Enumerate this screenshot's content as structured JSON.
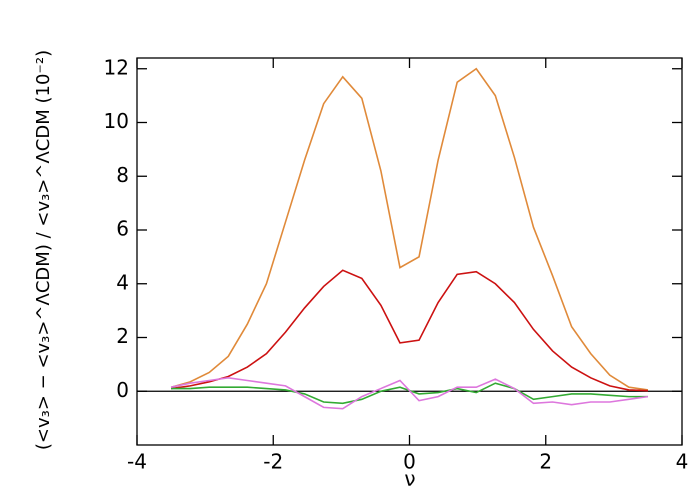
{
  "chart_data": {
    "type": "line",
    "x_label": "ν",
    "y_label": "(<v₃> − <v₃>^ΛCDM) / <v₃>^ΛCDM (10⁻²)",
    "x": [
      -3.5,
      -3.22,
      -2.94,
      -2.66,
      -2.38,
      -2.1,
      -1.82,
      -1.54,
      -1.26,
      -0.98,
      -0.7,
      -0.42,
      -0.14,
      0.14,
      0.42,
      0.7,
      0.98,
      1.26,
      1.54,
      1.82,
      2.1,
      2.38,
      2.66,
      2.94,
      3.22,
      3.5
    ],
    "series": [
      {
        "color": "#e08a3a",
        "values": [
          0.15,
          0.35,
          0.7,
          1.3,
          2.5,
          4.0,
          6.3,
          8.6,
          10.7,
          11.7,
          10.9,
          8.2,
          4.6,
          5.0,
          8.6,
          11.5,
          12.0,
          11.0,
          8.7,
          6.1,
          4.3,
          2.4,
          1.4,
          0.6,
          0.15,
          0.05
        ]
      },
      {
        "color": "#cc1111",
        "values": [
          0.1,
          0.2,
          0.35,
          0.55,
          0.9,
          1.4,
          2.2,
          3.1,
          3.9,
          4.5,
          4.2,
          3.2,
          1.8,
          1.9,
          3.3,
          4.35,
          4.45,
          4.0,
          3.3,
          2.3,
          1.5,
          0.9,
          0.5,
          0.2,
          0.05,
          0.02
        ]
      },
      {
        "color": "#33aa33",
        "values": [
          0.1,
          0.1,
          0.15,
          0.15,
          0.15,
          0.1,
          0.05,
          -0.1,
          -0.4,
          -0.45,
          -0.3,
          0.0,
          0.15,
          -0.1,
          -0.05,
          0.1,
          -0.05,
          0.3,
          0.1,
          -0.3,
          -0.2,
          -0.1,
          -0.1,
          -0.15,
          -0.2,
          -0.2
        ]
      },
      {
        "color": "#dd77dd",
        "values": [
          0.15,
          0.3,
          0.4,
          0.5,
          0.4,
          0.3,
          0.2,
          -0.2,
          -0.6,
          -0.65,
          -0.2,
          0.1,
          0.4,
          -0.35,
          -0.2,
          0.15,
          0.15,
          0.45,
          0.1,
          -0.45,
          -0.4,
          -0.5,
          -0.4,
          -0.4,
          -0.3,
          -0.2
        ]
      }
    ],
    "xlim": [
      -4,
      4
    ],
    "ylim": [
      -2,
      12.4
    ],
    "xticks": [
      -4,
      -2,
      0,
      2,
      4
    ],
    "yticks": [
      0,
      2,
      4,
      6,
      8,
      10,
      12
    ],
    "zero_line": true
  }
}
